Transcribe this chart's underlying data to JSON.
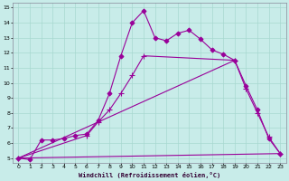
{
  "xlabel": "Windchill (Refroidissement éolien,°C)",
  "background_color": "#c8ece9",
  "grid_color": "#a8d8d0",
  "line_color": "#990099",
  "xlim": [
    -0.5,
    23.5
  ],
  "ylim": [
    4.7,
    15.3
  ],
  "xticks": [
    0,
    1,
    2,
    3,
    4,
    5,
    6,
    7,
    8,
    9,
    10,
    11,
    12,
    13,
    14,
    15,
    16,
    17,
    18,
    19,
    20,
    21,
    22,
    23
  ],
  "yticks": [
    5,
    6,
    7,
    8,
    9,
    10,
    11,
    12,
    13,
    14,
    15
  ],
  "series": [
    {
      "x": [
        0,
        1,
        2,
        3,
        4,
        5,
        6,
        7,
        8,
        9,
        10,
        11,
        12,
        13,
        14,
        15,
        16,
        17,
        18,
        19,
        20,
        21,
        22,
        23
      ],
      "y": [
        5.0,
        4.9,
        6.2,
        6.2,
        6.3,
        6.5,
        6.6,
        7.5,
        9.3,
        11.8,
        14.0,
        14.8,
        13.0,
        12.8,
        13.3,
        13.5,
        12.9,
        12.2,
        11.9,
        11.5,
        9.8,
        8.2,
        6.3,
        5.3
      ],
      "marker": "D",
      "markersize": 2.5,
      "linewidth": 0.8
    },
    {
      "x": [
        0,
        6,
        7,
        8,
        9,
        10,
        11,
        19,
        20,
        21,
        22,
        23
      ],
      "y": [
        5.0,
        6.5,
        7.4,
        8.2,
        9.3,
        10.5,
        11.8,
        11.5,
        9.6,
        8.0,
        6.4,
        5.3
      ],
      "marker": "+",
      "markersize": 4.5,
      "linewidth": 0.8
    },
    {
      "x": [
        0,
        19
      ],
      "y": [
        5.0,
        11.5
      ],
      "marker": null,
      "linewidth": 0.8
    },
    {
      "x": [
        0,
        23
      ],
      "y": [
        5.0,
        5.3
      ],
      "marker": null,
      "linewidth": 0.8
    }
  ]
}
